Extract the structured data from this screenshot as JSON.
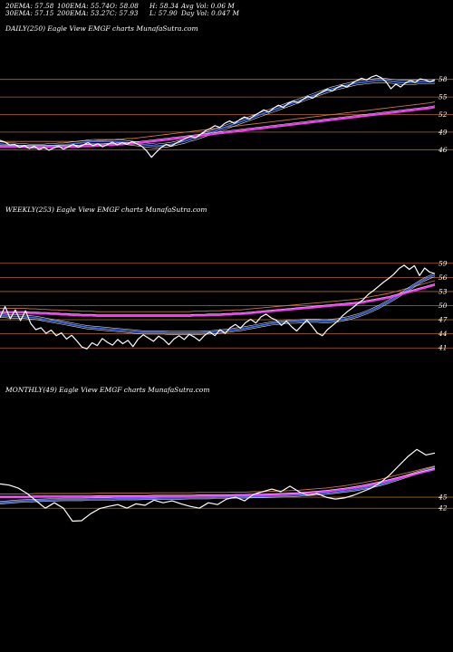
{
  "header": {
    "ema20": "20EMA: 57.58",
    "ema100": "100EMA: 55.74",
    "open": "O: 58.08",
    "high": "H: 58.34",
    "avgvol": "Avg Vol: 0.06  M",
    "ema30": "30EMA: 57.15",
    "ema200": "200EMA: 53.27",
    "close": "C: 57.93",
    "low": "L: 57.90",
    "dayvol": "Day Vol: 0.047 M"
  },
  "panels": {
    "daily_label": "DAILY(250) Eagle  View  EMGF charts MunafaSutra.com",
    "weekly_label": "WEEKLY(253) Eagle  View  EMGF charts MunafaSutra.com",
    "monthly_label": "MONTHLY(49) Eagle  View  EMGF charts MunafaSutra.com"
  },
  "colors": {
    "background": "#000000",
    "price": "#ffffff",
    "ema_blue": "#3a6cf4",
    "ema_magenta": "#ff33ff",
    "ema_brown": "#c87832",
    "ema_white": "#dddddd",
    "grid_orange": "#b5651d"
  },
  "chart_data": [
    {
      "type": "line",
      "title": "DAILY(250) Eagle  View  EMGF charts MunafaSutra.com",
      "ylim": [
        44.5,
        59.5
      ],
      "y_ticks": [
        58,
        55,
        52,
        49,
        46
      ],
      "x_count": 250,
      "series": [
        {
          "values": [
            47.6,
            47.3,
            46.8,
            46.9,
            46.4,
            46.7,
            46.2,
            46.6,
            46.0,
            46.4,
            45.9,
            46.3,
            46.6,
            46.1,
            46.5,
            46.9,
            46.4,
            46.8,
            47.2,
            46.7,
            47.0,
            46.5,
            46.9,
            47.3,
            46.8,
            47.2,
            46.9,
            47.4,
            47.0,
            46.6,
            45.8,
            44.7,
            45.6,
            46.4,
            46.9,
            46.6,
            47.1,
            47.5,
            47.9,
            48.3,
            48.0,
            48.6,
            49.2,
            49.6,
            50.1,
            49.8,
            50.5,
            50.9,
            50.5,
            51.1,
            51.6,
            51.2,
            51.8,
            52.3,
            52.8,
            52.4,
            53.1,
            53.6,
            53.2,
            53.9,
            54.3,
            54.0,
            54.6,
            55.1,
            54.8,
            55.4,
            55.9,
            56.3,
            56.0,
            56.6,
            57.0,
            56.7,
            57.3,
            57.8,
            58.2,
            57.9,
            58.4,
            58.7,
            58.3,
            57.6,
            56.4,
            57.2,
            56.7,
            57.4,
            57.8,
            57.5,
            58.1,
            57.9,
            57.6,
            57.93
          ]
        },
        {
          "values": [
            47.0,
            46.9,
            46.8,
            46.8,
            46.7,
            46.7,
            46.6,
            46.6,
            46.6,
            46.6,
            46.7,
            46.7,
            46.8,
            46.8,
            46.9,
            47.0,
            47.1,
            47.2,
            47.3,
            47.4,
            47.4,
            47.4,
            47.4,
            47.4,
            47.3,
            47.3,
            47.2,
            47.1,
            47.0,
            46.9,
            46.8,
            46.7,
            46.6,
            46.7,
            46.8,
            46.9,
            47.1,
            47.3,
            47.5,
            47.8,
            48.0,
            48.3,
            48.6,
            48.9,
            49.2,
            49.5,
            49.8,
            50.1,
            50.4,
            50.7,
            51.0,
            51.3,
            51.6,
            51.9,
            52.2,
            52.5,
            52.8,
            53.1,
            53.4,
            53.7,
            54.0,
            54.3,
            54.6,
            54.9,
            55.2,
            55.5,
            55.8,
            56.1,
            56.4,
            56.6,
            56.8,
            57.0,
            57.2,
            57.4,
            57.5,
            57.6,
            57.7,
            57.8,
            57.8,
            57.8,
            57.7,
            57.6,
            57.5,
            57.5,
            57.5,
            57.5,
            57.6,
            57.6,
            57.6,
            57.6
          ]
        },
        {
          "values": [
            46.5,
            46.5,
            46.5,
            46.5,
            46.5,
            46.5,
            46.5,
            46.5,
            46.5,
            46.5,
            46.5,
            46.5,
            46.5,
            46.5,
            46.5,
            46.5,
            46.5,
            46.6,
            46.6,
            46.6,
            46.7,
            46.7,
            46.8,
            46.8,
            46.9,
            46.9,
            47.0,
            47.0,
            47.1,
            47.2,
            47.3,
            47.4,
            47.5,
            47.6,
            47.7,
            47.8,
            47.9,
            48.0,
            48.1,
            48.2,
            48.3,
            48.4,
            48.5,
            48.6,
            48.7,
            48.8,
            48.9,
            49.0,
            49.1,
            49.2,
            49.3,
            49.4,
            49.5,
            49.6,
            49.7,
            49.8,
            49.9,
            50.0,
            50.1,
            50.2,
            50.3,
            50.4,
            50.5,
            50.6,
            50.7,
            50.8,
            50.9,
            51.0,
            51.1,
            51.2,
            51.3,
            51.4,
            51.5,
            51.6,
            51.7,
            51.8,
            51.9,
            52.0,
            52.1,
            52.2,
            52.3,
            52.4,
            52.5,
            52.6,
            52.7,
            52.8,
            52.9,
            53.0,
            53.1,
            53.27
          ]
        }
      ]
    },
    {
      "type": "line",
      "title": "WEEKLY(253) Eagle  View  EMGF charts MunafaSutra.com",
      "ylim": [
        39.5,
        60.5
      ],
      "y_ticks": [
        59,
        56,
        53,
        50,
        47,
        44,
        41
      ],
      "x_count": 253,
      "series": [
        {
          "values": [
            47.5,
            49.8,
            47.2,
            49.1,
            46.8,
            48.9,
            46.2,
            44.9,
            45.3,
            44.1,
            44.8,
            43.6,
            44.2,
            42.9,
            43.7,
            42.5,
            41.2,
            40.8,
            42.1,
            41.5,
            43.0,
            42.2,
            41.6,
            42.8,
            41.9,
            42.6,
            41.3,
            42.9,
            43.8,
            43.1,
            42.4,
            43.5,
            42.8,
            41.7,
            42.9,
            43.6,
            42.8,
            43.9,
            43.3,
            42.5,
            43.7,
            44.4,
            43.6,
            44.9,
            44.1,
            45.3,
            46.0,
            45.2,
            46.4,
            47.1,
            46.3,
            47.6,
            48.2,
            47.4,
            46.9,
            45.8,
            46.7,
            45.5,
            44.6,
            45.8,
            46.9,
            45.6,
            44.2,
            43.6,
            44.9,
            45.8,
            46.7,
            47.9,
            48.8,
            49.6,
            50.5,
            51.3,
            52.4,
            53.2,
            54.1,
            55.0,
            55.8,
            56.7,
            57.9,
            58.6,
            57.7,
            58.5,
            56.4,
            58.0,
            57.1,
            56.8
          ]
        },
        {
          "values": [
            47.8,
            47.8,
            47.7,
            47.7,
            47.7,
            47.6,
            47.5,
            47.4,
            47.2,
            47.0,
            46.8,
            46.6,
            46.4,
            46.2,
            46.0,
            45.8,
            45.6,
            45.4,
            45.3,
            45.2,
            45.1,
            45.0,
            44.9,
            44.8,
            44.7,
            44.6,
            44.5,
            44.4,
            44.3,
            44.3,
            44.3,
            44.3,
            44.3,
            44.2,
            44.2,
            44.2,
            44.2,
            44.2,
            44.2,
            44.2,
            44.3,
            44.3,
            44.4,
            44.5,
            44.6,
            44.7,
            44.9,
            45.0,
            45.2,
            45.4,
            45.6,
            45.8,
            46.0,
            46.2,
            46.3,
            46.4,
            46.5,
            46.6,
            46.6,
            46.7,
            46.8,
            46.8,
            46.8,
            46.7,
            46.7,
            46.8,
            46.9,
            47.1,
            47.3,
            47.6,
            47.9,
            48.3,
            48.7,
            49.2,
            49.7,
            50.3,
            50.9,
            51.5,
            52.2,
            52.9,
            53.6,
            54.3,
            55.0,
            55.6,
            56.1,
            56.5
          ]
        },
        {
          "values": [
            48.5,
            48.5,
            48.5,
            48.5,
            48.5,
            48.5,
            48.4,
            48.4,
            48.3,
            48.3,
            48.2,
            48.2,
            48.1,
            48.1,
            48.0,
            48.0,
            47.9,
            47.9,
            47.9,
            47.8,
            47.8,
            47.8,
            47.8,
            47.8,
            47.8,
            47.8,
            47.8,
            47.8,
            47.8,
            47.8,
            47.8,
            47.8,
            47.8,
            47.8,
            47.8,
            47.8,
            47.8,
            47.8,
            47.9,
            47.9,
            47.9,
            48.0,
            48.0,
            48.0,
            48.1,
            48.1,
            48.2,
            48.2,
            48.3,
            48.4,
            48.5,
            48.6,
            48.7,
            48.8,
            48.9,
            49.0,
            49.1,
            49.2,
            49.3,
            49.4,
            49.5,
            49.6,
            49.7,
            49.8,
            49.9,
            50.0,
            50.1,
            50.2,
            50.3,
            50.4,
            50.5,
            50.7,
            50.9,
            51.1,
            51.3,
            51.5,
            51.7,
            52.0,
            52.3,
            52.6,
            52.9,
            53.2,
            53.5,
            53.8,
            54.1,
            54.4
          ]
        }
      ]
    },
    {
      "type": "line",
      "title": "MONTHLY(49) Eagle  View  EMGF charts MunafaSutra.com",
      "ylim": [
        29.5,
        62.5
      ],
      "y_ticks": [
        45,
        42
      ],
      "x_count": 49,
      "series": [
        {
          "values": [
            48.6,
            48.3,
            47.5,
            46.0,
            44.0,
            42.0,
            43.5,
            42.0,
            38.5,
            38.6,
            40.5,
            41.9,
            42.5,
            43.0,
            42.0,
            43.2,
            42.8,
            44.2,
            43.5,
            44.0,
            43.2,
            42.5,
            42.0,
            43.5,
            43.0,
            44.5,
            45.0,
            44.0,
            45.8,
            46.5,
            47.2,
            46.5,
            48.0,
            46.5,
            45.5,
            46.0,
            45.0,
            44.5,
            44.8,
            45.5,
            46.5,
            47.5,
            49.0,
            51.0,
            53.5,
            56.0,
            58.0,
            56.5,
            57.0
          ]
        },
        {
          "values": [
            43.5,
            43.7,
            43.9,
            44.0,
            44.1,
            44.2,
            44.3,
            44.4,
            44.4,
            44.4,
            44.5,
            44.5,
            44.5,
            44.6,
            44.6,
            44.6,
            44.7,
            44.7,
            44.8,
            44.8,
            44.8,
            44.9,
            44.9,
            44.9,
            45.0,
            45.0,
            45.1,
            45.1,
            45.2,
            45.2,
            45.3,
            45.4,
            45.5,
            45.6,
            45.8,
            45.9,
            46.1,
            46.4,
            46.7,
            47.0,
            47.4,
            47.9,
            48.5,
            49.2,
            50.0,
            50.8,
            51.6,
            52.3,
            53.0
          ]
        },
        {
          "values": [
            45.0,
            45.0,
            45.0,
            45.0,
            45.1,
            45.1,
            45.1,
            45.1,
            45.1,
            45.1,
            45.1,
            45.2,
            45.2,
            45.2,
            45.2,
            45.2,
            45.2,
            45.3,
            45.3,
            45.3,
            45.3,
            45.3,
            45.4,
            45.4,
            45.4,
            45.4,
            45.5,
            45.5,
            45.6,
            45.6,
            45.7,
            45.8,
            45.9,
            46.0,
            46.2,
            46.4,
            46.6,
            46.9,
            47.2,
            47.6,
            48.0,
            48.5,
            49.0,
            49.6,
            50.2,
            50.8,
            51.4,
            52.0,
            52.6
          ]
        }
      ]
    }
  ]
}
